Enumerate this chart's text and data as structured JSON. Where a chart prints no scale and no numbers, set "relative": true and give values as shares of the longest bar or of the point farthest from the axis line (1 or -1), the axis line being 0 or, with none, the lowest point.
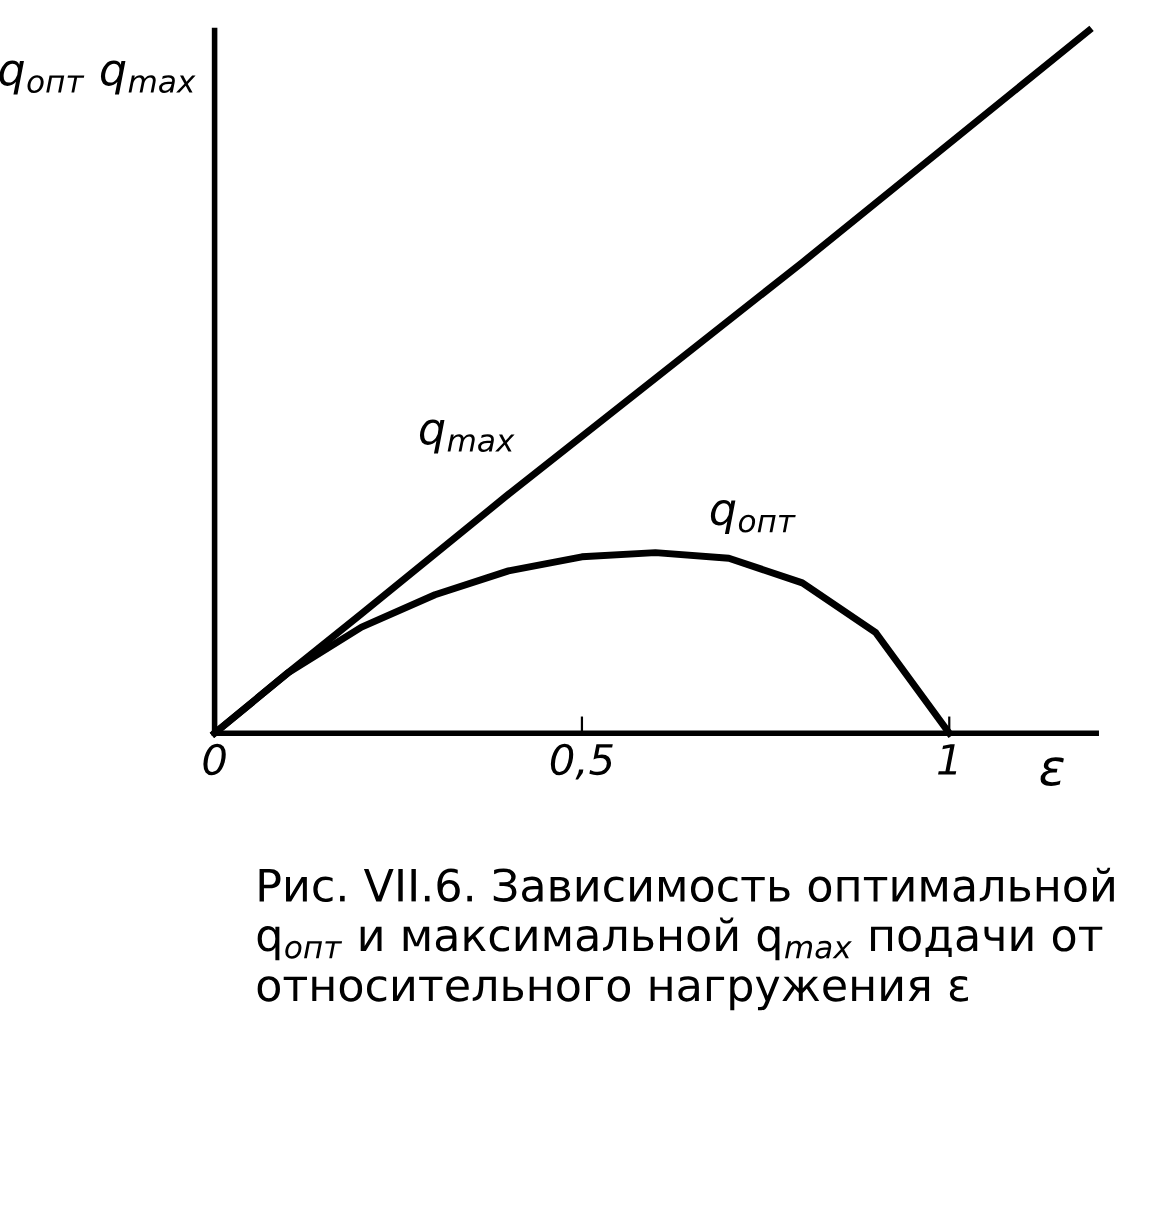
{
  "chart_data": {
    "type": "line",
    "relative": true,
    "ylabel": "q$_{опт}$ q$_{max}$",
    "xlabel": "ε",
    "xlim": [
      0,
      1.2
    ],
    "xticks": [
      0,
      {
        "value": 0.5,
        "label": "0,5"
      },
      1
    ],
    "series": [
      {
        "name": "q$_{max}$",
        "color": "#000000",
        "x": [
          0,
          0.1,
          0.2,
          0.4,
          0.8,
          1.19
        ],
        "values": [
          0,
          0.086,
          0.17,
          0.34,
          0.67,
          1
        ]
      },
      {
        "name": "q$_{опт}$",
        "color": "#000000",
        "x": [
          0,
          0.1,
          0.2,
          0.3,
          0.4,
          0.5,
          0.6,
          0.7,
          0.8,
          0.9,
          1.0
        ],
        "values": [
          0,
          0.086,
          0.151,
          0.197,
          0.231,
          0.251,
          0.257,
          0.249,
          0.214,
          0.143,
          0
        ]
      }
    ],
    "grid": false,
    "legend": false,
    "annotations": [
      "Рис. VII.6. Зависимость оптимальной q$_{опт}$ и максимальной q$_{max}$ подачи от относительного нагружения ε"
    ]
  }
}
